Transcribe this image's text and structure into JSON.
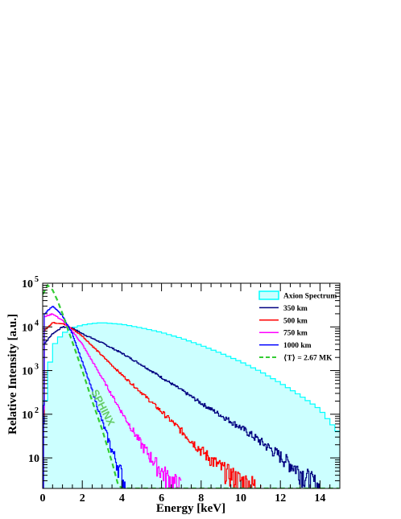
{
  "chart_data": {
    "type": "line",
    "xlabel": "Energy [keV]",
    "ylabel": "Relative Intensity [a.u.]",
    "xlim": [
      0,
      15
    ],
    "ylim": [
      2,
      100000
    ],
    "y_scale": "log",
    "grid": false,
    "legend_position": "top-right",
    "x_ticks": [
      {
        "value": 0,
        "label": "0"
      },
      {
        "value": 2,
        "label": "2"
      },
      {
        "value": 4,
        "label": "4"
      },
      {
        "value": 6,
        "label": "6"
      },
      {
        "value": 8,
        "label": "8"
      },
      {
        "value": 10,
        "label": "10"
      },
      {
        "value": 12,
        "label": "12"
      },
      {
        "value": 14,
        "label": "14"
      }
    ],
    "y_ticks": [
      {
        "value": 10,
        "label": "10"
      },
      {
        "value": 100,
        "label": "10",
        "sup": "2"
      },
      {
        "value": 1000,
        "label": "10",
        "sup": "3"
      },
      {
        "value": 10000,
        "label": "10",
        "sup": "4"
      },
      {
        "value": 100000,
        "label": "10",
        "sup": "5"
      }
    ],
    "series": [
      {
        "name": "Axion Spectrum",
        "style": "filled-histogram",
        "color": "#00ffff",
        "fill": "#ccffff",
        "x": [
          0,
          0.25,
          0.5,
          1,
          1.5,
          2,
          2.5,
          3,
          3.5,
          4,
          5,
          6,
          7,
          8,
          9,
          10,
          11,
          12,
          13,
          14,
          15
        ],
        "y": [
          60,
          700,
          3500,
          7000,
          9500,
          11000,
          12000,
          12500,
          12000,
          11500,
          9500,
          7500,
          5500,
          3800,
          2500,
          1600,
          950,
          520,
          270,
          130,
          35
        ]
      },
      {
        "name": "350 km",
        "style": "line",
        "color": "#000080",
        "x": [
          0,
          0.1,
          0.5,
          1,
          1.5,
          2,
          3,
          4,
          5,
          6,
          7,
          8,
          9,
          10,
          11,
          12,
          13,
          14
        ],
        "y": [
          0,
          4200,
          7000,
          10000,
          9500,
          7000,
          4300,
          2500,
          1350,
          700,
          360,
          180,
          95,
          50,
          24,
          11,
          5,
          2
        ]
      },
      {
        "name": "500 km",
        "style": "line",
        "color": "#ff0000",
        "x": [
          0,
          0.1,
          0.5,
          1,
          1.5,
          2,
          3,
          4,
          5,
          6,
          7,
          8,
          9,
          10,
          11
        ],
        "y": [
          0,
          8500,
          12500,
          12000,
          9000,
          6200,
          2200,
          800,
          310,
          115,
          42,
          15,
          6,
          3,
          2
        ]
      },
      {
        "name": "750 km",
        "style": "line",
        "color": "#ff00ff",
        "x": [
          0,
          0.1,
          0.5,
          1,
          1.5,
          2,
          3,
          4,
          5,
          5.5,
          6,
          6.5,
          7
        ],
        "y": [
          0,
          17000,
          20000,
          14000,
          8000,
          4000,
          680,
          110,
          20,
          10,
          5,
          3,
          2
        ]
      },
      {
        "name": "1000 km",
        "style": "line",
        "color": "#0000ff",
        "x": [
          0,
          0.1,
          0.5,
          1,
          1.5,
          2,
          2.5,
          3,
          3.5,
          4,
          4.2
        ],
        "y": [
          0,
          20000,
          30000,
          18000,
          7000,
          1600,
          350,
          70,
          15,
          4,
          2
        ]
      },
      {
        "name": "⟨T⟩ = 2.67 MK",
        "style": "dashed",
        "color": "#33cc33",
        "x": [
          0,
          0.25,
          0.5,
          0.75,
          1,
          1.5,
          2,
          2.5,
          3,
          3.5,
          3.8,
          4,
          5,
          8,
          12,
          15
        ],
        "y": [
          55000,
          90000,
          70000,
          40000,
          20000,
          4500,
          1000,
          200,
          45,
          8,
          2.5,
          2,
          2,
          2,
          2,
          2
        ]
      }
    ],
    "annotations": [
      {
        "text": "SPHINX",
        "color": "#66cc66"
      }
    ]
  }
}
